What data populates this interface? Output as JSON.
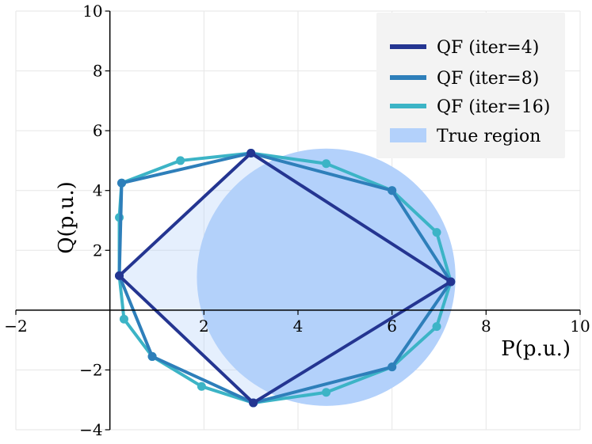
{
  "chart_data": {
    "type": "line",
    "title": "",
    "xlabel": "P(p.u.)",
    "ylabel": "Q(p.u.)",
    "xlim": [
      -2,
      10
    ],
    "ylim": [
      -4,
      10
    ],
    "xticks": [
      -2,
      2,
      4,
      6,
      8,
      10
    ],
    "yticks": [
      -4,
      -2,
      2,
      4,
      6,
      8,
      10
    ],
    "grid": true,
    "legend_position": "top-right",
    "true_region": {
      "name": "True region",
      "color": "#b3d1fb",
      "center": [
        4.6,
        1.1
      ],
      "semi_axes": [
        2.75,
        4.3
      ]
    },
    "series": [
      {
        "name": "QF (iter=16)",
        "color": "#3cb4c6",
        "points": [
          [
            3.0,
            5.25
          ],
          [
            4.6,
            4.9
          ],
          [
            6.0,
            4.0
          ],
          [
            6.95,
            2.6
          ],
          [
            7.25,
            0.95
          ],
          [
            6.95,
            -0.55
          ],
          [
            6.0,
            -1.9
          ],
          [
            4.6,
            -2.75
          ],
          [
            3.05,
            -3.1
          ],
          [
            1.95,
            -2.55
          ],
          [
            0.9,
            -1.55
          ],
          [
            0.3,
            -0.3
          ],
          [
            0.2,
            1.15
          ],
          [
            0.2,
            3.1
          ],
          [
            0.25,
            4.25
          ],
          [
            1.5,
            5.0
          ]
        ]
      },
      {
        "name": "QF (iter=8)",
        "color": "#2e7fba",
        "points": [
          [
            3.0,
            5.25
          ],
          [
            6.0,
            4.0
          ],
          [
            7.25,
            0.95
          ],
          [
            6.0,
            -1.9
          ],
          [
            3.05,
            -3.1
          ],
          [
            0.9,
            -1.55
          ],
          [
            0.2,
            1.15
          ],
          [
            0.25,
            4.25
          ]
        ]
      },
      {
        "name": "QF (iter=4)",
        "color": "#243591",
        "points": [
          [
            3.0,
            5.25
          ],
          [
            7.25,
            0.95
          ],
          [
            3.05,
            -3.1
          ],
          [
            0.2,
            1.15
          ]
        ]
      }
    ]
  }
}
